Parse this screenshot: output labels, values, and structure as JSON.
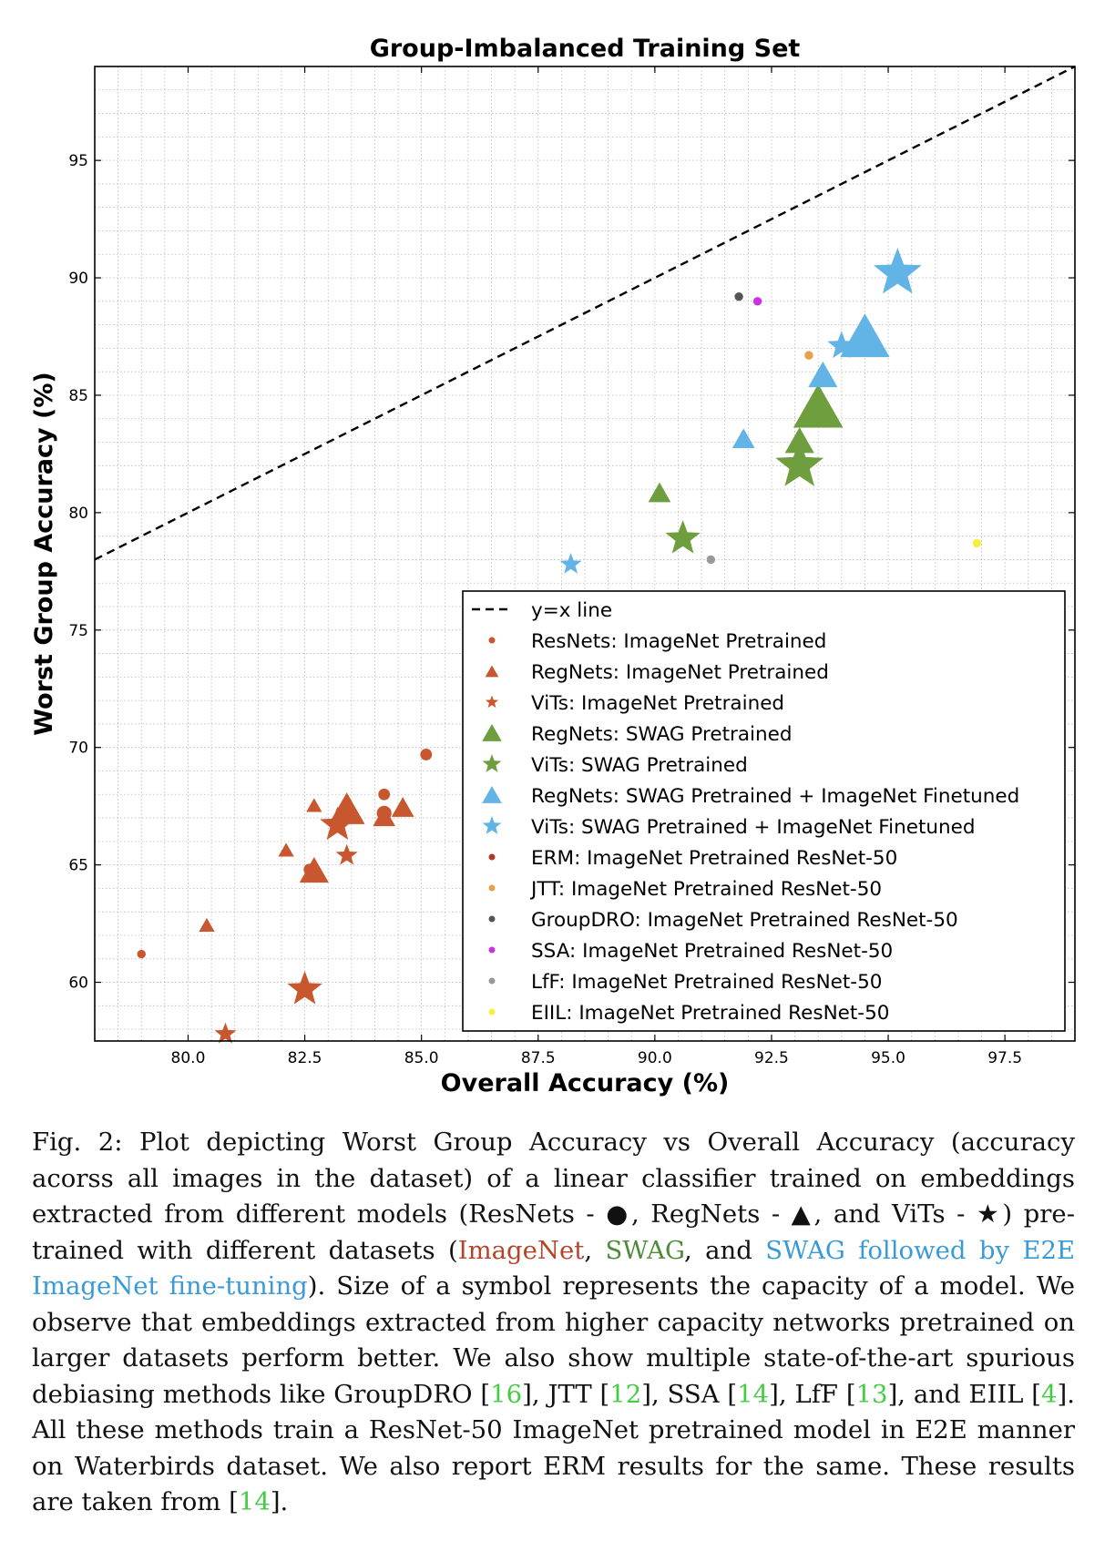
{
  "chart_data": {
    "type": "scatter",
    "title": "Group-Imbalanced Training Set",
    "xlabel": "Overall Accuracy (%)",
    "ylabel": "Worst Group Accuracy (%)",
    "xlim": [
      78.0,
      99.0
    ],
    "ylim": [
      57.5,
      99.0
    ],
    "xticks": [
      80.0,
      82.5,
      85.0,
      87.5,
      90.0,
      92.5,
      95.0,
      97.5
    ],
    "xtick_labels": [
      "80.0",
      "82.5",
      "85.0",
      "87.5",
      "90.0",
      "92.5",
      "95.0",
      "97.5"
    ],
    "yticks": [
      60,
      65,
      70,
      75,
      80,
      85,
      90,
      95
    ],
    "ytick_labels": [
      "60",
      "65",
      "70",
      "75",
      "80",
      "85",
      "90",
      "95"
    ],
    "grid": true,
    "legend_position": "lower-right",
    "reference_line": {
      "label": "y=x line",
      "style": "dashed",
      "color": "#000000"
    },
    "series": [
      {
        "name": "ResNets: ImageNet Pretrained",
        "marker": "circle",
        "color": "#c8562f",
        "points": [
          {
            "x": 79.0,
            "y": 61.2,
            "s": 1
          },
          {
            "x": 82.6,
            "y": 64.8,
            "s": 2
          },
          {
            "x": 84.2,
            "y": 67.2,
            "s": 3
          },
          {
            "x": 84.2,
            "y": 68.0,
            "s": 2
          },
          {
            "x": 85.1,
            "y": 69.7,
            "s": 2
          }
        ]
      },
      {
        "name": "RegNets: ImageNet Pretrained",
        "marker": "triangle",
        "color": "#c8562f",
        "points": [
          {
            "x": 80.4,
            "y": 62.4,
            "s": 1
          },
          {
            "x": 82.1,
            "y": 65.6,
            "s": 1
          },
          {
            "x": 82.7,
            "y": 67.5,
            "s": 1
          },
          {
            "x": 82.7,
            "y": 64.7,
            "s": 3
          },
          {
            "x": 83.4,
            "y": 67.3,
            "s": 4
          },
          {
            "x": 84.2,
            "y": 67.0,
            "s": 2
          },
          {
            "x": 84.6,
            "y": 67.4,
            "s": 2
          }
        ]
      },
      {
        "name": "ViTs: ImageNet Pretrained",
        "marker": "star",
        "color": "#c8562f",
        "points": [
          {
            "x": 80.8,
            "y": 57.8,
            "s": 2
          },
          {
            "x": 82.5,
            "y": 59.7,
            "s": 4
          },
          {
            "x": 83.2,
            "y": 66.7,
            "s": 4
          },
          {
            "x": 83.4,
            "y": 65.4,
            "s": 2
          }
        ]
      },
      {
        "name": "RegNets: SWAG Pretrained",
        "marker": "triangle",
        "color": "#6e9e3e",
        "points": [
          {
            "x": 90.1,
            "y": 80.8,
            "s": 2
          },
          {
            "x": 93.1,
            "y": 83.0,
            "s": 3
          },
          {
            "x": 93.5,
            "y": 84.4,
            "s": 6
          }
        ]
      },
      {
        "name": "ViTs: SWAG Pretrained",
        "marker": "star",
        "color": "#6e9e3e",
        "points": [
          {
            "x": 90.6,
            "y": 78.9,
            "s": 4
          },
          {
            "x": 93.1,
            "y": 82.0,
            "s": 6
          }
        ]
      },
      {
        "name": "RegNets: SWAG Pretrained + ImageNet Finetuned",
        "marker": "triangle",
        "color": "#62b4e6",
        "points": [
          {
            "x": 91.9,
            "y": 83.1,
            "s": 2
          },
          {
            "x": 93.6,
            "y": 85.8,
            "s": 3
          },
          {
            "x": 94.5,
            "y": 87.4,
            "s": 6
          }
        ]
      },
      {
        "name": "ViTs: SWAG Pretrained + ImageNet Finetuned",
        "marker": "star",
        "color": "#62b4e6",
        "points": [
          {
            "x": 88.2,
            "y": 77.8,
            "s": 2
          },
          {
            "x": 94.0,
            "y": 87.1,
            "s": 3
          },
          {
            "x": 95.2,
            "y": 90.2,
            "s": 6
          }
        ]
      },
      {
        "name": "ERM: ImageNet Pretrained ResNet-50",
        "marker": "circle",
        "color": "#b03a26",
        "points": []
      },
      {
        "name": "JTT: ImageNet Pretrained ResNet-50",
        "marker": "circle",
        "color": "#e8a04a",
        "points": [
          {
            "x": 93.3,
            "y": 86.7,
            "s": 1
          }
        ]
      },
      {
        "name": "GroupDRO: ImageNet Pretrained ResNet-50",
        "marker": "circle",
        "color": "#555555",
        "points": [
          {
            "x": 91.8,
            "y": 89.2,
            "s": 1
          }
        ]
      },
      {
        "name": "SSA: ImageNet Pretrained ResNet-50",
        "marker": "circle",
        "color": "#cc33dd",
        "points": [
          {
            "x": 92.2,
            "y": 89.0,
            "s": 1
          }
        ]
      },
      {
        "name": "LfF: ImageNet Pretrained ResNet-50",
        "marker": "circle",
        "color": "#999999",
        "points": [
          {
            "x": 91.2,
            "y": 78.0,
            "s": 1
          }
        ]
      },
      {
        "name": "EIIL: ImageNet Pretrained ResNet-50",
        "marker": "circle",
        "color": "#f5f040",
        "points": [
          {
            "x": 96.9,
            "y": 78.7,
            "s": 1
          }
        ]
      }
    ]
  },
  "caption": {
    "fig_label": "Fig. 2:",
    "part1": " Plot depicting Worst Group Accuracy vs Overall Accuracy (accuracy acorss all images in the dataset) of a linear classifier trained on embeddings extracted from different models (ResNets - ●, RegNets - ▲, and ViTs - ★) pre-trained with different datasets (",
    "imagenet": "ImageNet",
    "sep1": ", ",
    "swag": "SWAG",
    "sep2": ", and ",
    "swag_e2e": "SWAG followed by E2E ImageNet fine-tuning",
    "part2": "). Size of a symbol represents the capacity of a model. We observe that embeddings extracted from higher capacity networks pretrained on larger datasets perform better. We also show multiple state-of-the-art spurious debiasing methods like GroupDRO [",
    "ref16": "16",
    "part3": "], JTT [",
    "ref12": "12",
    "part4": "], SSA [",
    "ref14a": "14",
    "part5": "], LfF [",
    "ref13": "13",
    "part6": "], and EIIL [",
    "ref4": "4",
    "part7": "]. All these methods train a ResNet-50 ImageNet pretrained model in E2E manner on Waterbirds dataset. We also report ERM results for the same. These results are taken from  [",
    "ref14b": "14",
    "part8": "]."
  }
}
